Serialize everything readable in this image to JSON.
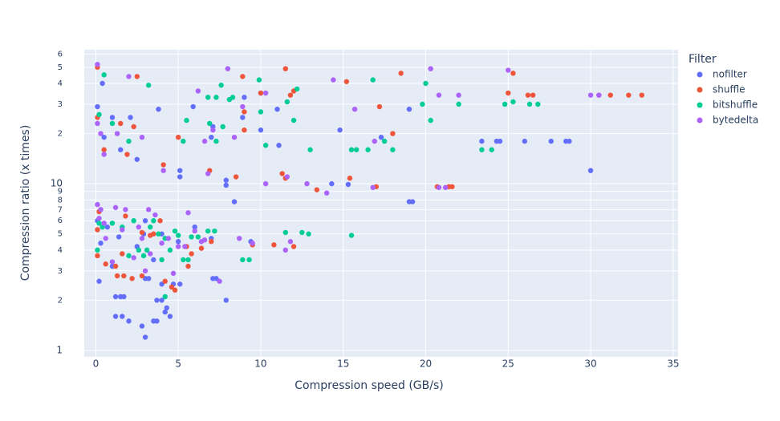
{
  "chart_data": {
    "type": "scatter",
    "x_label": "Compression speed (GB/s)",
    "y_label": "Compression ratio (x times)",
    "legend_title": "Filter",
    "legend_position": "right",
    "log_y": true,
    "grid": true,
    "xlim": [
      -0.7,
      35.3
    ],
    "ylim": [
      0.915,
      63.7
    ],
    "xticks": [
      0,
      5,
      10,
      15,
      20,
      25,
      30,
      35
    ],
    "yticks": [
      1,
      2,
      3,
      4,
      5,
      6,
      7,
      8,
      9,
      10,
      {
        "value": 20,
        "label": "2"
      },
      {
        "value": 30,
        "label": "3"
      },
      {
        "value": 40,
        "label": "4"
      },
      {
        "value": 50,
        "label": "5"
      },
      {
        "value": 60,
        "label": "6"
      }
    ],
    "series": [
      {
        "name": "nofilter",
        "color": "#636efa",
        "x": [
          0.1,
          0.4,
          0.5,
          1,
          1.5,
          2.1,
          2.5,
          3.8,
          5.1,
          5.1,
          5.9,
          7,
          7.1,
          7.9,
          7.9,
          8.9,
          9,
          10,
          10,
          11,
          11.1,
          14.8,
          14.3,
          15.3,
          17.3,
          19,
          19.2,
          19,
          23.4,
          24.3,
          24.5,
          26,
          27.6,
          28.5,
          28.7,
          30,
          8.4,
          0.2,
          0.1,
          0.3,
          1.2,
          1.5,
          1.7,
          1.2,
          1.6,
          2,
          2.8,
          3,
          3.5,
          3.7,
          3.7,
          4,
          4.2,
          4.3,
          4.5,
          3,
          3.2,
          4,
          4.7,
          5.1,
          7.1,
          7.3,
          7.9,
          3,
          2.9,
          4,
          5,
          6,
          7,
          9.4,
          1,
          2.5,
          3.5,
          0.7,
          1.4
        ],
        "values": [
          29,
          40,
          19,
          25,
          16,
          25,
          14,
          28,
          12,
          11,
          29,
          19,
          22,
          10.5,
          9.8,
          25,
          33,
          35,
          21,
          28,
          17,
          21,
          10,
          9.9,
          19,
          7.8,
          7.8,
          28,
          18,
          18,
          18,
          18,
          18,
          18,
          18,
          12,
          7.8,
          2.6,
          6,
          4.4,
          2.1,
          2.1,
          2.1,
          1.6,
          1.6,
          1.5,
          1.4,
          1.2,
          1.5,
          1.5,
          2,
          2,
          1.7,
          1.8,
          1.6,
          2.7,
          2.7,
          2.5,
          2.5,
          2.5,
          2.7,
          2.7,
          2,
          6,
          5,
          5,
          4.5,
          5.5,
          4.7,
          4.5,
          3.2,
          4.2,
          3.5,
          5.5,
          4.8
        ]
      },
      {
        "name": "shuffle",
        "color": "#ef553b",
        "x": [
          0.1,
          0.1,
          2.5,
          1.5,
          2.3,
          0.5,
          1.9,
          5,
          4.1,
          6.9,
          8.5,
          8.9,
          9,
          9,
          10,
          11.5,
          11.8,
          12,
          11.3,
          11.5,
          13.4,
          15.2,
          15.4,
          17.2,
          17,
          18,
          18.5,
          20.7,
          21.4,
          21.6,
          25,
          25.3,
          26.2,
          26.5,
          30.5,
          31.2,
          32.3,
          33.1,
          0.1,
          0.1,
          0.2,
          0.6,
          1.3,
          1.7,
          2.2,
          2.8,
          3.3,
          3.9,
          4.2,
          4.6,
          4.8,
          5.5,
          5.6,
          5.8,
          6.4,
          7,
          9.5,
          10.8,
          12,
          1.8,
          2.8,
          3.5,
          1.2,
          1.6
        ],
        "values": [
          50,
          25,
          44,
          23,
          22,
          16,
          15,
          19,
          13,
          12,
          11,
          44,
          27,
          21,
          35,
          49,
          34,
          36,
          11.5,
          10.8,
          9.2,
          41,
          10.8,
          29,
          9.6,
          20,
          46,
          9.6,
          9.6,
          9.6,
          35,
          46,
          34,
          34,
          34,
          34,
          34,
          34,
          3.7,
          5.3,
          6.8,
          3.3,
          2.8,
          2.8,
          2.7,
          2.8,
          4.9,
          6,
          2.6,
          2.4,
          2.3,
          4.2,
          3.2,
          3.8,
          4.1,
          4.5,
          4.3,
          4.3,
          4.2,
          6.4,
          5.1,
          5,
          3.2,
          3.8
        ]
      },
      {
        "name": "bitshuffle",
        "color": "#00cc96",
        "x": [
          0.2,
          0.5,
          1,
          2,
          3.2,
          5.3,
          5.5,
          6.8,
          7.3,
          6.9,
          7.3,
          7.6,
          7.7,
          8.1,
          8.3,
          9.9,
          10,
          10.3,
          11.6,
          12,
          12.2,
          13,
          15.5,
          15.8,
          16.5,
          16.8,
          17.5,
          18,
          19.8,
          20,
          20.3,
          22,
          23.4,
          24,
          24.8,
          25.3,
          26.3,
          26.8,
          0.1,
          0.2,
          0.4,
          1,
          1.6,
          2,
          2.3,
          2.6,
          2.9,
          3.1,
          3.3,
          3.5,
          3.8,
          4.2,
          4.5,
          4.8,
          5,
          5.3,
          5.6,
          5.8,
          6.2,
          6.8,
          7.2,
          8.9,
          9.3,
          11.5,
          12.5,
          12.9,
          15.5,
          4,
          4.2
        ],
        "values": [
          26,
          45,
          23,
          18,
          39,
          18,
          24,
          33,
          33,
          23,
          18,
          39,
          22,
          32,
          33,
          42,
          27,
          17,
          31,
          24,
          37,
          16,
          16,
          16,
          16,
          42,
          18,
          16,
          30,
          40,
          24,
          30,
          16,
          16,
          30,
          31,
          30,
          30,
          4,
          5.8,
          5.5,
          5.8,
          5.5,
          3.7,
          6,
          4,
          3.7,
          4,
          5.5,
          6,
          5,
          4.7,
          4,
          5.2,
          4.9,
          3.5,
          3.5,
          4.8,
          4.8,
          5.2,
          5.2,
          3.5,
          3.5,
          5.1,
          5.1,
          5,
          4.9,
          3.5,
          2.1
        ]
      },
      {
        "name": "bytedelta",
        "color": "#ab63fa",
        "x": [
          0.1,
          0.1,
          0.3,
          0.5,
          1.3,
          2,
          2.8,
          4.1,
          6.2,
          6.6,
          6.8,
          7.1,
          8,
          8.4,
          8.9,
          10.3,
          10.3,
          11.6,
          12.8,
          14.4,
          14,
          15.7,
          16.8,
          16.9,
          20.3,
          20.8,
          20.8,
          21.2,
          22,
          25,
          30,
          30.5,
          0.1,
          0.2,
          0.3,
          0.5,
          0.6,
          1,
          1.2,
          1.6,
          1.8,
          2.3,
          2.6,
          2.8,
          3.2,
          3.6,
          4,
          4.4,
          4.7,
          5,
          5.4,
          5.6,
          6,
          6.4,
          6.6,
          7.5,
          8.7,
          9.5,
          11.5,
          11.8,
          3,
          3.3
        ],
        "values": [
          52,
          23,
          20,
          15,
          20,
          44,
          19,
          12,
          36,
          18,
          11.5,
          21,
          49,
          19,
          29,
          35,
          10,
          11,
          10,
          42,
          8.8,
          28,
          9.5,
          18,
          49,
          34,
          9.5,
          9.5,
          34,
          48,
          34,
          34,
          7.5,
          6.2,
          7,
          5.8,
          4.7,
          3.4,
          7.2,
          5.3,
          7,
          3.6,
          5.5,
          4.7,
          7,
          6.5,
          4.4,
          4.7,
          2.9,
          4.2,
          4.2,
          6.7,
          5.2,
          4.5,
          4.6,
          2.6,
          4.7,
          4.4,
          4,
          4.5,
          3,
          3.8
        ]
      }
    ]
  }
}
